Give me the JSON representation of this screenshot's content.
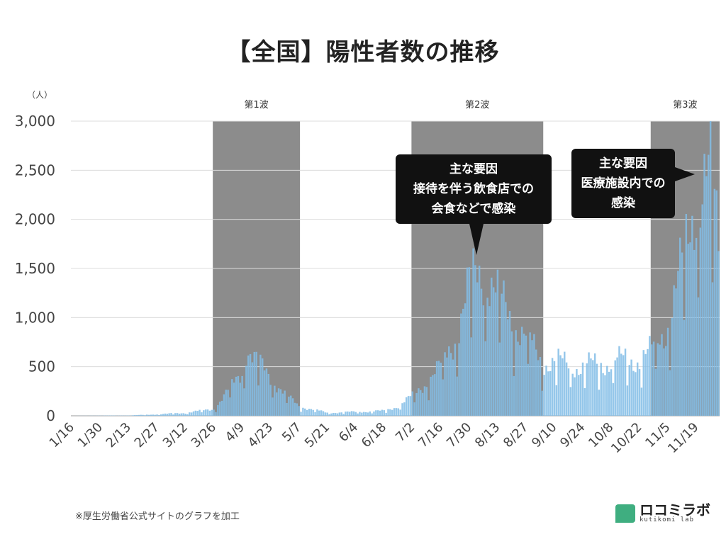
{
  "title": "【全国】陽性者数の推移",
  "source_note": "※厚生労働省公式サイトのグラフを加工",
  "brand": {
    "name": "ロコミラボ",
    "sub": "kutikomi lab",
    "color": "#3fae80"
  },
  "chart_data": {
    "type": "bar",
    "title": "【全国】陽性者数の推移",
    "xlabel": "",
    "ylabel": "（人）",
    "ylim": [
      0,
      3000
    ],
    "yticks": [
      "0",
      "500",
      "1,000",
      "1,500",
      "2,000",
      "2,500",
      "3,000"
    ],
    "x_tick_labels": [
      "1/16",
      "1/30",
      "2/13",
      "2/27",
      "3/12",
      "3/26",
      "4/9",
      "4/23",
      "5/7",
      "5/21",
      "6/4",
      "6/18",
      "7/2",
      "7/16",
      "7/30",
      "8/13",
      "8/27",
      "9/10",
      "9/24",
      "10/8",
      "10/22",
      "11/5",
      "11/19"
    ],
    "grid": true,
    "bar_color": "#82bde6",
    "shade_color": "#8c8c8c",
    "waves": [
      {
        "label": "第1波",
        "start": "3/26",
        "end": "5/7"
      },
      {
        "label": "第2波",
        "start": "7/2",
        "end": "9/4"
      },
      {
        "label": "第3波",
        "start": "10/28",
        "end": "11/30"
      }
    ],
    "annotations": [
      {
        "lines": [
          "主な要因",
          "接待を伴う飲食店での",
          "会食などで感染"
        ],
        "points_to": "7/30"
      },
      {
        "lines": [
          "主な要因",
          "医療施設内での",
          "感染"
        ],
        "points_to": "11/19"
      }
    ],
    "keyframes": [
      [
        "1/16",
        0
      ],
      [
        "1/30",
        2
      ],
      [
        "2/13",
        3
      ],
      [
        "2/27",
        15
      ],
      [
        "3/12",
        30
      ],
      [
        "3/26",
        70
      ],
      [
        "4/2",
        250
      ],
      [
        "4/9",
        450
      ],
      [
        "4/11",
        700
      ],
      [
        "4/16",
        550
      ],
      [
        "4/23",
        400
      ],
      [
        "5/1",
        200
      ],
      [
        "5/7",
        100
      ],
      [
        "5/21",
        30
      ],
      [
        "6/4",
        40
      ],
      [
        "6/18",
        50
      ],
      [
        "6/25",
        100
      ],
      [
        "7/2",
        200
      ],
      [
        "7/9",
        350
      ],
      [
        "7/16",
        500
      ],
      [
        "7/23",
        800
      ],
      [
        "7/30",
        1300
      ],
      [
        "8/3",
        1450
      ],
      [
        "8/7",
        1500
      ],
      [
        "8/13",
        1200
      ],
      [
        "8/20",
        1000
      ],
      [
        "8/27",
        800
      ],
      [
        "9/4",
        550
      ],
      [
        "9/10",
        550
      ],
      [
        "9/24",
        500
      ],
      [
        "10/8",
        550
      ],
      [
        "10/22",
        580
      ],
      [
        "10/28",
        650
      ],
      [
        "11/5",
        950
      ],
      [
        "11/12",
        1500
      ],
      [
        "11/19",
        2300
      ],
      [
        "11/26",
        2400
      ],
      [
        "11/30",
        1800
      ]
    ]
  }
}
